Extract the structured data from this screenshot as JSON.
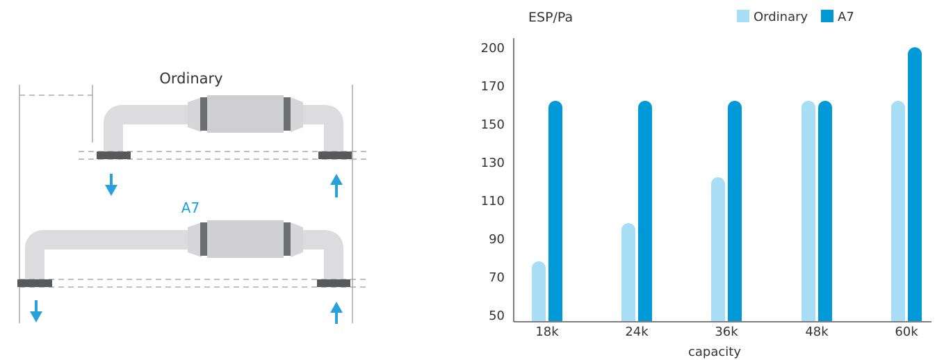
{
  "diagram": {
    "ordinary_label": "Ordinary",
    "a7_label": "A7",
    "colors": {
      "pipe": "#dcdcde",
      "body": "#cfcfd1",
      "flange": "#6d6e71",
      "arrow": "#2ba1dc",
      "a7_text": "#1aa0dc"
    }
  },
  "chart_data": {
    "type": "bar",
    "ylabel": "ESP/Pa",
    "xlabel": "capacity",
    "categories": [
      "18k",
      "24k",
      "36k",
      "48k",
      "60k"
    ],
    "ytick_labels": [
      "50",
      "70",
      "90",
      "110",
      "130",
      "150",
      "170",
      "200"
    ],
    "ylim": [
      50,
      200
    ],
    "series": [
      {
        "name": "Ordinary",
        "color": "#a8def5",
        "values": [
          78,
          98,
          122,
          162,
          162
        ]
      },
      {
        "name": "A7",
        "color": "#0099d8",
        "values": [
          162,
          162,
          162,
          162,
          200
        ]
      }
    ],
    "legend_position": "top-right",
    "grid": false
  }
}
